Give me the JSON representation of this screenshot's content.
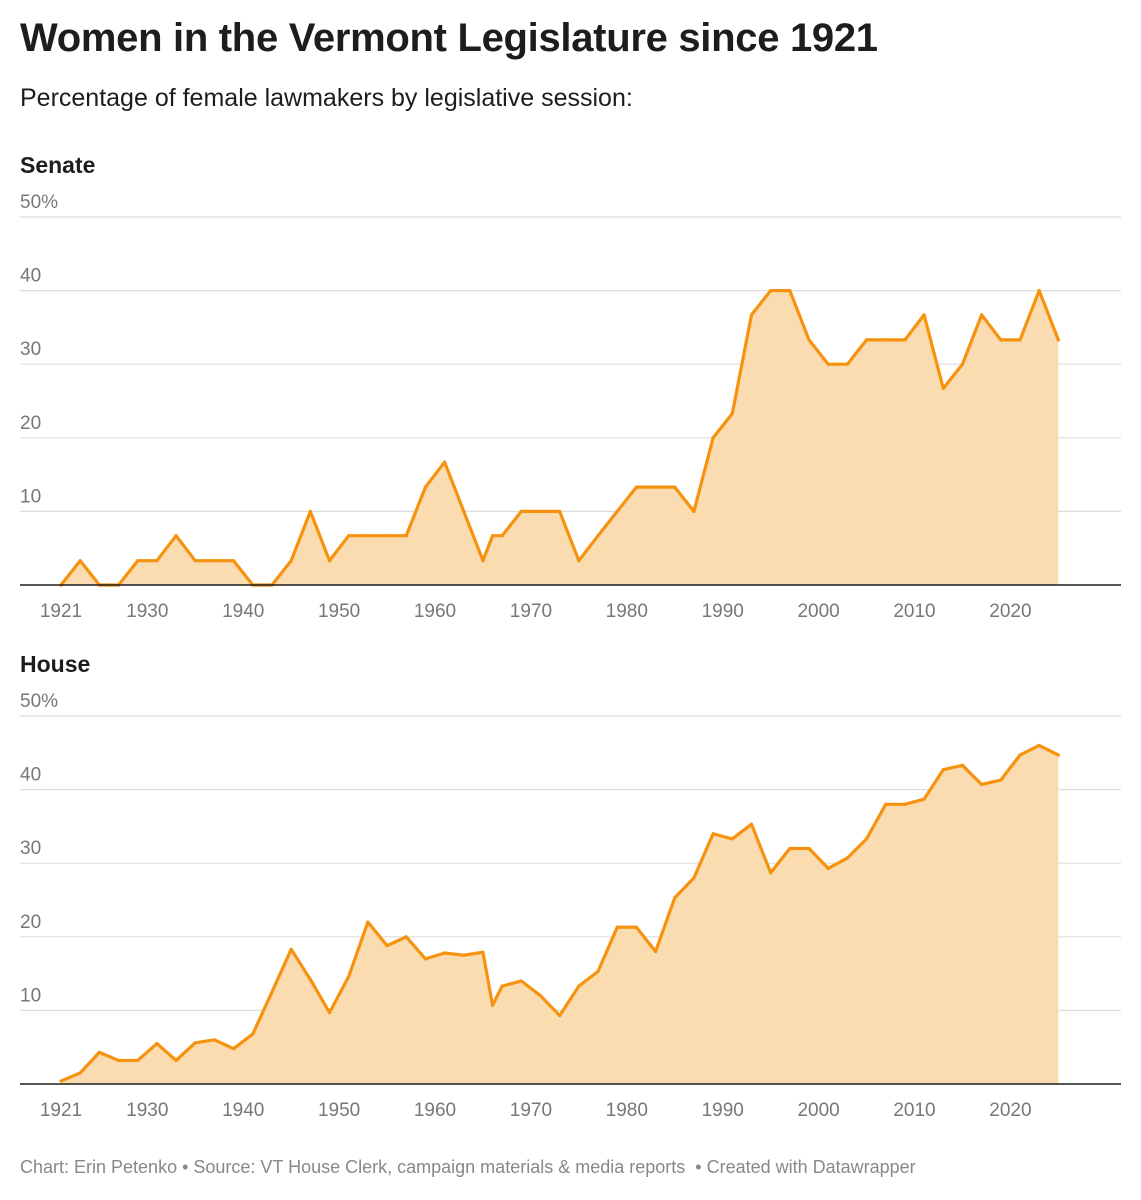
{
  "title": "Women in the Vermont Legislature since 1921",
  "subtitle": "Percentage of female lawmakers by legislative session:",
  "footer": {
    "chart_credit": "Chart: Erin Petenko",
    "source": "Source: VT House Clerk, campaign materials & media reports",
    "created_with": "Created with Datawrapper"
  },
  "colors": {
    "line": "#f7920e",
    "fill": "#fbdcb0",
    "grid": "#dddddd",
    "baseline": "#1d1d1d",
    "tick_text": "#777777"
  },
  "chart_data": [
    {
      "type": "area",
      "title": "Senate",
      "y_tick_labels": [
        "50%",
        "40",
        "30",
        "20",
        "10"
      ],
      "y_ticks": [
        50,
        40,
        30,
        20,
        10
      ],
      "ylim": [
        0,
        50
      ],
      "xlim": [
        1921,
        2026
      ],
      "x_tick_labels": [
        "1921",
        "1930",
        "1940",
        "1950",
        "1960",
        "1970",
        "1980",
        "1990",
        "2000",
        "2010",
        "2020"
      ],
      "x_ticks": [
        1921,
        1930,
        1940,
        1950,
        1960,
        1970,
        1980,
        1990,
        2000,
        2010,
        2020
      ],
      "grid": true,
      "x": [
        1921,
        1923,
        1925,
        1927,
        1929,
        1931,
        1933,
        1935,
        1937,
        1939,
        1941,
        1943,
        1945,
        1947,
        1949,
        1951,
        1953,
        1955,
        1957,
        1959,
        1961,
        1963,
        1965,
        1966,
        1967,
        1969,
        1971,
        1973,
        1975,
        1977,
        1979,
        1981,
        1983,
        1985,
        1987,
        1989,
        1991,
        1993,
        1995,
        1997,
        1999,
        2001,
        2003,
        2005,
        2007,
        2009,
        2011,
        2013,
        2015,
        2017,
        2019,
        2021,
        2023,
        2025
      ],
      "y": [
        0,
        3.3,
        0,
        0,
        3.3,
        3.3,
        6.7,
        3.3,
        3.3,
        3.3,
        0,
        0,
        3.3,
        10,
        3.3,
        6.7,
        6.7,
        6.7,
        6.7,
        13.3,
        16.7,
        10,
        3.3,
        6.7,
        6.7,
        10,
        10,
        10,
        3.3,
        6.7,
        10,
        13.3,
        13.3,
        13.3,
        10,
        20,
        23.3,
        36.7,
        40,
        40,
        33.3,
        30,
        30,
        33.3,
        33.3,
        33.3,
        36.7,
        26.7,
        30,
        36.7,
        33.3,
        33.3,
        40,
        33.3
      ]
    },
    {
      "type": "area",
      "title": "House",
      "y_tick_labels": [
        "50%",
        "40",
        "30",
        "20",
        "10"
      ],
      "y_ticks": [
        50,
        40,
        30,
        20,
        10
      ],
      "ylim": [
        0,
        50
      ],
      "xlim": [
        1921,
        2026
      ],
      "x_tick_labels": [
        "1921",
        "1930",
        "1940",
        "1950",
        "1960",
        "1970",
        "1980",
        "1990",
        "2000",
        "2010",
        "2020"
      ],
      "x_ticks": [
        1921,
        1930,
        1940,
        1950,
        1960,
        1970,
        1980,
        1990,
        2000,
        2010,
        2020
      ],
      "grid": true,
      "x": [
        1921,
        1923,
        1925,
        1927,
        1929,
        1931,
        1933,
        1935,
        1937,
        1939,
        1941,
        1943,
        1945,
        1947,
        1949,
        1951,
        1953,
        1955,
        1957,
        1959,
        1961,
        1963,
        1965,
        1966,
        1967,
        1969,
        1971,
        1973,
        1975,
        1977,
        1979,
        1981,
        1983,
        1985,
        1987,
        1989,
        1991,
        1993,
        1995,
        1997,
        1999,
        2001,
        2003,
        2005,
        2007,
        2009,
        2011,
        2013,
        2015,
        2017,
        2019,
        2021,
        2023,
        2025
      ],
      "y": [
        0.4,
        1.5,
        4.3,
        3.2,
        3.2,
        5.5,
        3.2,
        5.6,
        6,
        4.8,
        6.8,
        12.5,
        18.3,
        14.2,
        9.7,
        14.6,
        22,
        18.8,
        20,
        17,
        17.8,
        17.5,
        17.9,
        10.7,
        13.3,
        14,
        12,
        9.3,
        13.3,
        15.3,
        21.3,
        21.3,
        18,
        25.3,
        28,
        34,
        33.3,
        35.3,
        28.7,
        32,
        32,
        29.3,
        30.7,
        33.3,
        38,
        38,
        38.7,
        42.7,
        43.3,
        40.7,
        41.3,
        44.7,
        46,
        44.7
      ]
    }
  ]
}
